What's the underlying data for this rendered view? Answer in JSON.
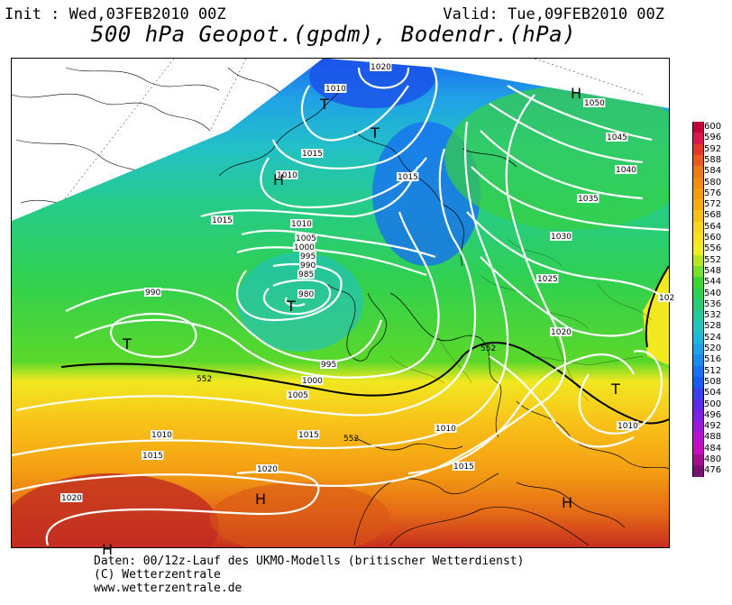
{
  "header": {
    "init": "Init : Wed,03FEB2010 00Z",
    "valid": "Valid: Tue,09FEB2010 00Z",
    "title": "500 hPa Geopot.(gpdm), Bodendr.(hPa)"
  },
  "footer": {
    "line1": "Daten: 00/12z-Lauf des UKMO-Modells (britischer Wetterdienst)",
    "line2": "(C) Wetterzentrale",
    "line3": "www.wetterzentrale.de"
  },
  "legend": {
    "values": [
      "600",
      "596",
      "592",
      "588",
      "584",
      "580",
      "576",
      "572",
      "568",
      "564",
      "560",
      "556",
      "552",
      "548",
      "544",
      "540",
      "536",
      "532",
      "528",
      "524",
      "520",
      "516",
      "512",
      "508",
      "504",
      "500",
      "496",
      "492",
      "488",
      "484",
      "480",
      "476"
    ],
    "colors": [
      "#c4003c",
      "#d61c4a",
      "#e13a2a",
      "#e65c1c",
      "#eb7a18",
      "#f08c12",
      "#f49c10",
      "#f7ac14",
      "#f9c018",
      "#fbd41c",
      "#fde01e",
      "#f4ec22",
      "#b8e624",
      "#7ade2a",
      "#3ed434",
      "#2cd056",
      "#28cc7a",
      "#24c89c",
      "#22c4c0",
      "#20b8d8",
      "#1ca4e4",
      "#1a8cec",
      "#1874f0",
      "#1a5cf0",
      "#3a40ec",
      "#5a2ce8",
      "#7a22e0",
      "#9a1ad8",
      "#b812cc",
      "#c80cc0",
      "#a0108c",
      "#7a1070"
    ]
  },
  "map": {
    "pressure_labels": [
      {
        "text": "1020"
      },
      {
        "text": "1010"
      },
      {
        "text": "1015"
      },
      {
        "text": "1010"
      },
      {
        "text": "1015"
      },
      {
        "text": "1015"
      },
      {
        "text": "1010"
      },
      {
        "text": "1005"
      },
      {
        "text": "1000"
      },
      {
        "text": "995"
      },
      {
        "text": "990"
      },
      {
        "text": "985"
      },
      {
        "text": "980"
      },
      {
        "text": "990"
      },
      {
        "text": "995"
      },
      {
        "text": "1000"
      },
      {
        "text": "1005"
      },
      {
        "text": "1010"
      },
      {
        "text": "1015"
      },
      {
        "text": "1020"
      },
      {
        "text": "1020"
      },
      {
        "text": "1015"
      },
      {
        "text": "1015"
      },
      {
        "text": "1010"
      },
      {
        "text": "1050"
      },
      {
        "text": "1045"
      },
      {
        "text": "1040"
      },
      {
        "text": "1035"
      },
      {
        "text": "1030"
      },
      {
        "text": "1025"
      },
      {
        "text": "1020"
      },
      {
        "text": "1010"
      },
      {
        "text": "552"
      },
      {
        "text": "552"
      },
      {
        "text": "552"
      },
      {
        "text": "102"
      }
    ],
    "systems": [
      {
        "text": "T"
      },
      {
        "text": "T"
      },
      {
        "text": "H"
      },
      {
        "text": "T"
      },
      {
        "text": "T"
      },
      {
        "text": "T"
      },
      {
        "text": "H"
      },
      {
        "text": "H"
      },
      {
        "text": "H"
      },
      {
        "text": "H"
      }
    ]
  }
}
